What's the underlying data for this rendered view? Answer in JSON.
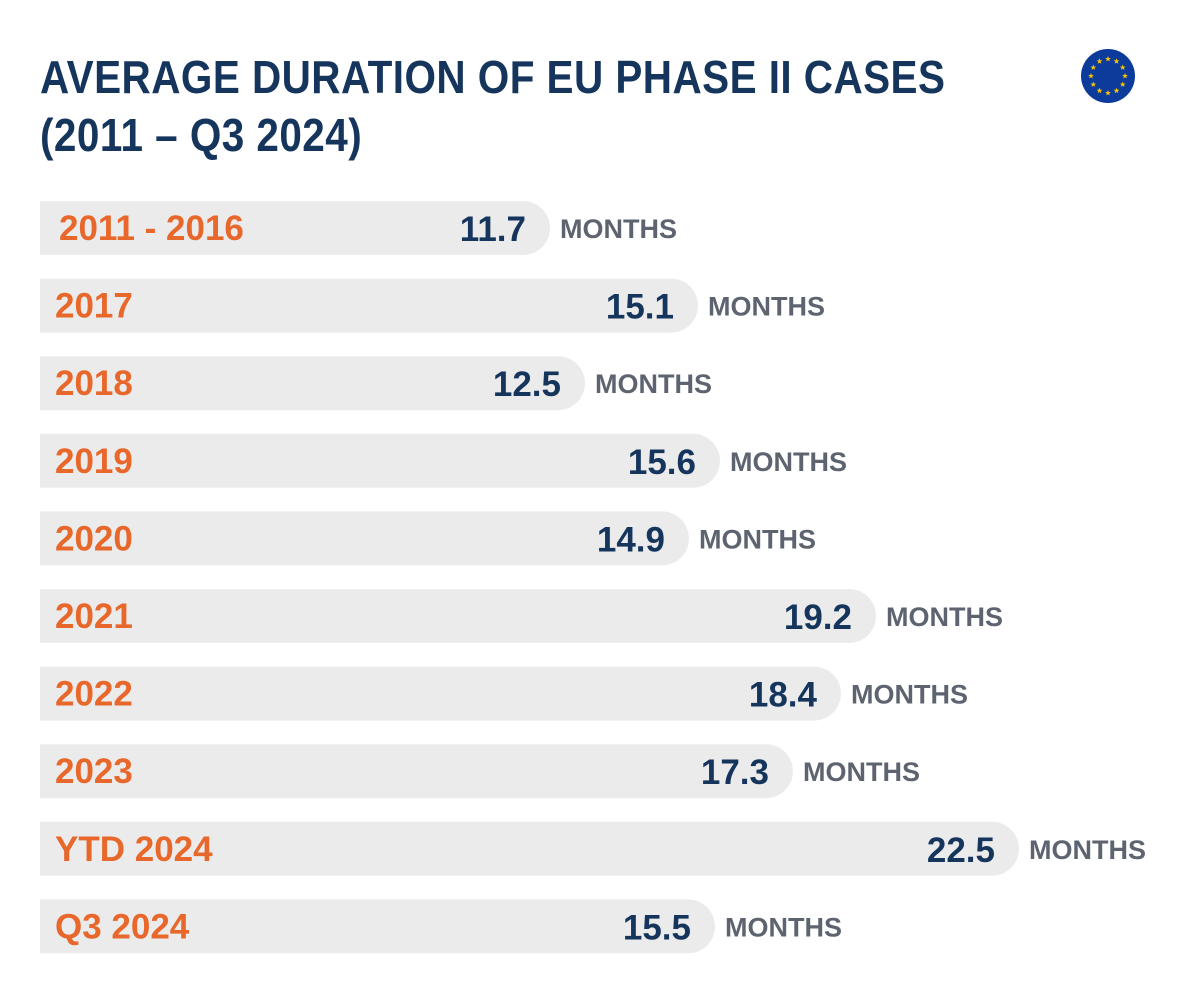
{
  "title_line1": "AVERAGE DURATION OF EU PHASE II CASES",
  "title_line2": "(2011 – Q3 2024)",
  "icon": "eu-flag-icon",
  "colors": {
    "title": "#15355c",
    "category": "#e8672b",
    "value": "#15355c",
    "unit": "#5d6470",
    "bar": "#ebebeb",
    "flag_blue": "#0d3b9c",
    "flag_star": "#f5c400"
  },
  "chart_data": {
    "type": "bar",
    "orientation": "horizontal",
    "title": "AVERAGE DURATION OF EU PHASE II CASES (2011 – Q3 2024)",
    "unit": "MONTHS",
    "categories": [
      "2011 - 2016",
      "2017",
      "2018",
      "2019",
      "2020",
      "2021",
      "2022",
      "2023",
      "YTD 2024",
      "Q3 2024"
    ],
    "values": [
      11.7,
      15.1,
      12.5,
      15.6,
      14.9,
      19.2,
      18.4,
      17.3,
      22.5,
      15.5
    ],
    "value_labels": [
      "11.7",
      "15.1",
      "12.5",
      "15.6",
      "14.9",
      "19.2",
      "18.4",
      "17.3",
      "22.5",
      "15.5"
    ],
    "grid": false,
    "legend": "none"
  }
}
